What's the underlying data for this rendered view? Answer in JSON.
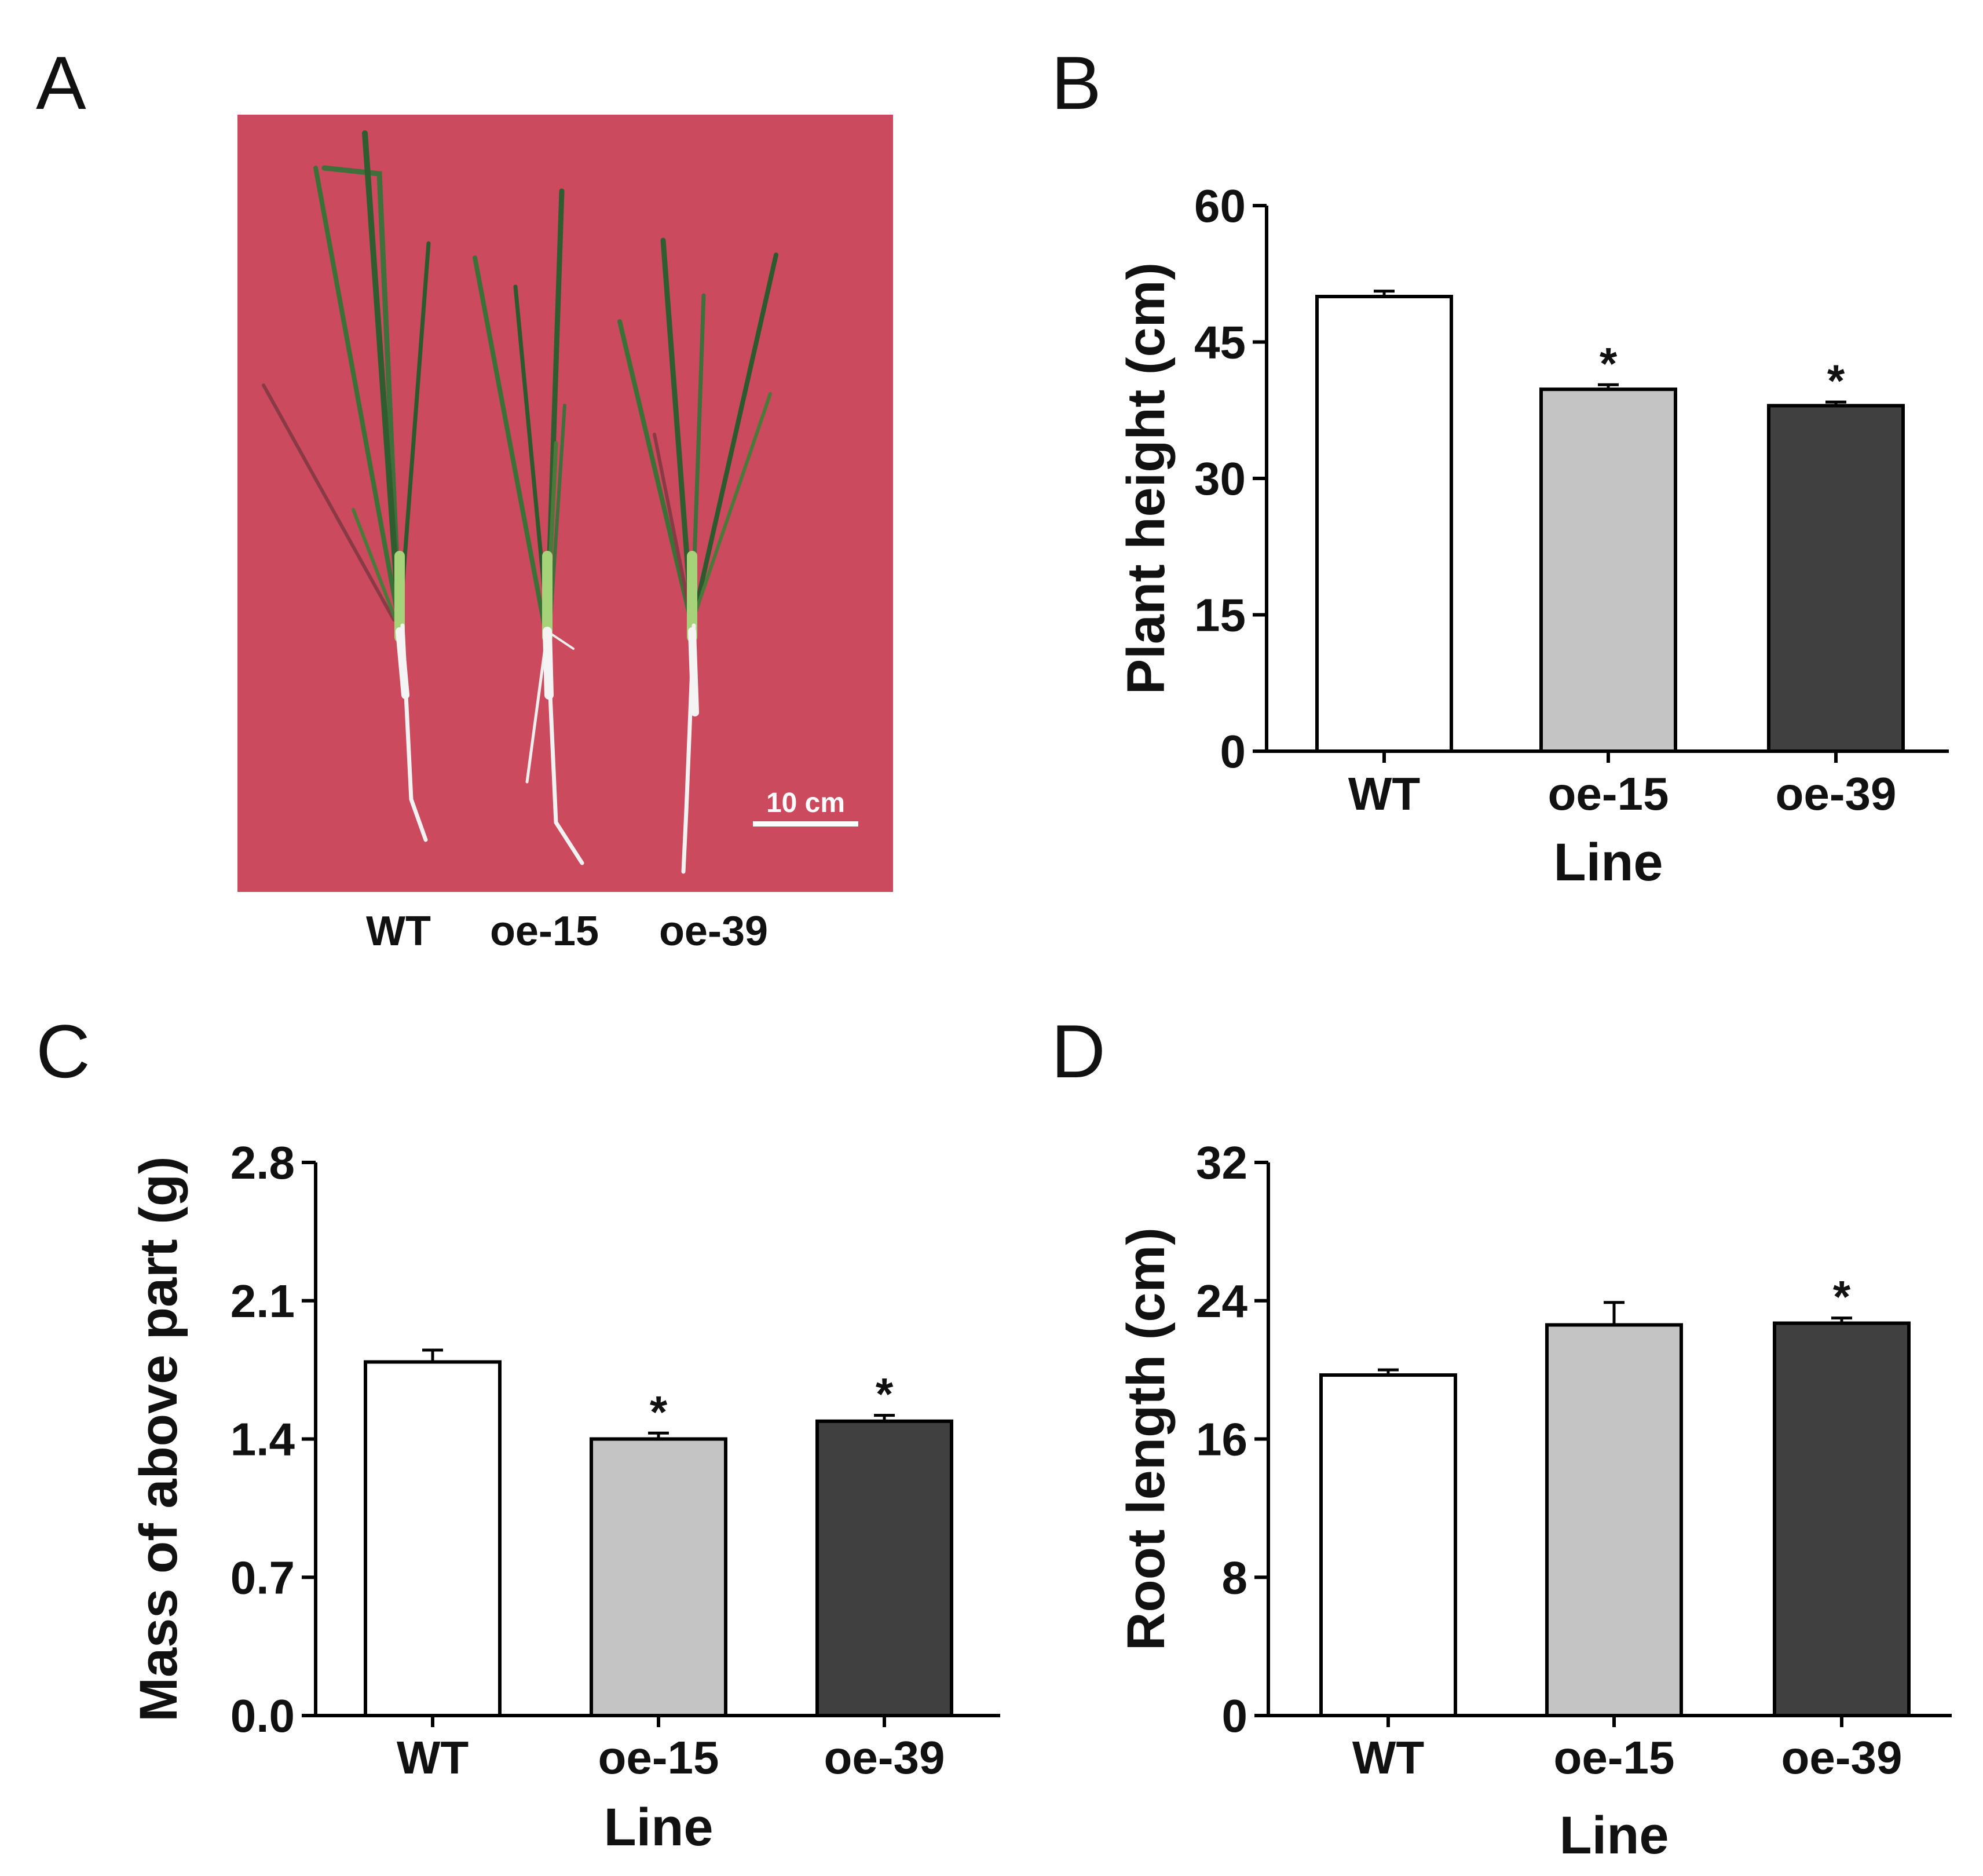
{
  "panels": {
    "A": {
      "letter": "A"
    },
    "B": {
      "letter": "B"
    },
    "C": {
      "letter": "C"
    },
    "D": {
      "letter": "D"
    }
  },
  "photo": {
    "background_color": "#cc4a5e",
    "labels": [
      "WT",
      "oe-15",
      "oe-39"
    ],
    "scale_bar_label": "10 cm"
  },
  "colors": {
    "WT": "#ffffff",
    "oe-15": "#c4c4c4",
    "oe-39": "#404040"
  },
  "chart_data": [
    {
      "panel": "B",
      "type": "bar",
      "categories": [
        "WT",
        "oe-15",
        "oe-39"
      ],
      "values": [
        50.0,
        39.8,
        38.0
      ],
      "errors": [
        0.6,
        0.5,
        0.4
      ],
      "significance": [
        "",
        "*",
        "*"
      ],
      "xlabel": "Line",
      "ylabel": "Plant height (cm)",
      "ylim": [
        0,
        60
      ],
      "yticks": [
        "0",
        "15",
        "30",
        "45",
        "60"
      ]
    },
    {
      "panel": "C",
      "type": "bar",
      "categories": [
        "WT",
        "oe-15",
        "oe-39"
      ],
      "values": [
        1.79,
        1.4,
        1.49
      ],
      "errors": [
        0.06,
        0.03,
        0.03
      ],
      "significance": [
        "",
        "*",
        "*"
      ],
      "xlabel": "Line",
      "ylabel": "Mass of above part (g)",
      "ylim": [
        0,
        2.8
      ],
      "yticks": [
        "0.0",
        "0.7",
        "1.4",
        "2.1",
        "2.8"
      ]
    },
    {
      "panel": "D",
      "type": "bar",
      "categories": [
        "WT",
        "oe-15",
        "oe-39"
      ],
      "values": [
        19.7,
        22.6,
        22.7
      ],
      "errors": [
        0.3,
        1.3,
        0.3
      ],
      "significance": [
        "",
        "",
        "*"
      ],
      "xlabel": "Line",
      "ylabel": "Root length (cm)",
      "ylim": [
        0,
        32
      ],
      "yticks": [
        "0",
        "8",
        "16",
        "24",
        "32"
      ]
    }
  ]
}
